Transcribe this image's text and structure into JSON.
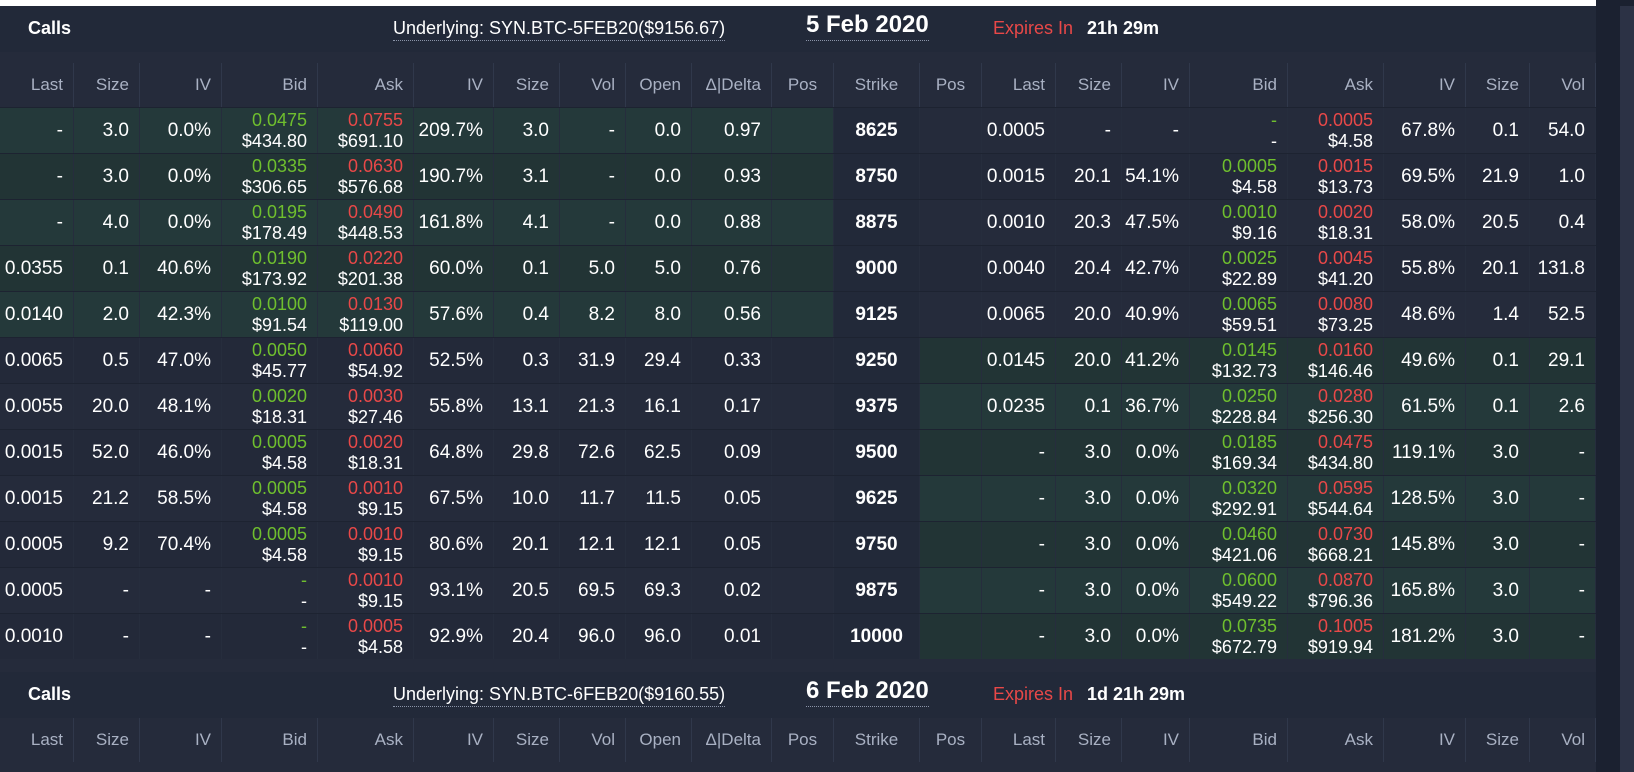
{
  "columns": [
    "Last",
    "Size",
    "IV",
    "Bid",
    "Ask",
    "IV",
    "Size",
    "Vol",
    "Open",
    "Δ|Delta",
    "Pos",
    "Strike",
    "Pos",
    "Last",
    "Size",
    "IV",
    "Bid",
    "Ask",
    "IV",
    "Size",
    "Vol"
  ],
  "sections": [
    {
      "calls_label": "Calls",
      "underlying": "Underlying: SYN.BTC-5FEB20($9156.67)",
      "date": "5 Feb 2020",
      "expires_label": "Expires In",
      "expires_value": "21h 29m"
    },
    {
      "calls_label": "Calls",
      "underlying": "Underlying: SYN.BTC-6FEB20($9160.55)",
      "date": "6 Feb 2020",
      "expires_label": "Expires In",
      "expires_value": "1d 21h 29m"
    }
  ],
  "rows": [
    {
      "call_itm": true,
      "put_itm": false,
      "c_last": "-",
      "c_size": "3.0",
      "c_iv": "0.0%",
      "c_bid_btc": "0.0475",
      "c_bid_usd": "$434.80",
      "c_ask_btc": "0.0755",
      "c_ask_usd": "$691.10",
      "c_miv": "209.7%",
      "c_msize": "3.0",
      "c_vol": "-",
      "c_open": "0.0",
      "c_delta": "0.97",
      "c_pos": "",
      "strike": "8625",
      "p_pos": "",
      "p_last": "0.0005",
      "p_size": "-",
      "p_iv": "-",
      "p_bid_btc": "-",
      "p_bid_usd": "-",
      "p_ask_btc": "0.0005",
      "p_ask_usd": "$4.58",
      "p_miv": "67.8%",
      "p_msize": "0.1",
      "p_vol": "54.0"
    },
    {
      "call_itm": true,
      "put_itm": false,
      "c_last": "-",
      "c_size": "3.0",
      "c_iv": "0.0%",
      "c_bid_btc": "0.0335",
      "c_bid_usd": "$306.65",
      "c_ask_btc": "0.0630",
      "c_ask_usd": "$576.68",
      "c_miv": "190.7%",
      "c_msize": "3.1",
      "c_vol": "-",
      "c_open": "0.0",
      "c_delta": "0.93",
      "c_pos": "",
      "strike": "8750",
      "p_pos": "",
      "p_last": "0.0015",
      "p_size": "20.1",
      "p_iv": "54.1%",
      "p_bid_btc": "0.0005",
      "p_bid_usd": "$4.58",
      "p_ask_btc": "0.0015",
      "p_ask_usd": "$13.73",
      "p_miv": "69.5%",
      "p_msize": "21.9",
      "p_vol": "1.0"
    },
    {
      "call_itm": true,
      "put_itm": false,
      "c_last": "-",
      "c_size": "4.0",
      "c_iv": "0.0%",
      "c_bid_btc": "0.0195",
      "c_bid_usd": "$178.49",
      "c_ask_btc": "0.0490",
      "c_ask_usd": "$448.53",
      "c_miv": "161.8%",
      "c_msize": "4.1",
      "c_vol": "-",
      "c_open": "0.0",
      "c_delta": "0.88",
      "c_pos": "",
      "strike": "8875",
      "p_pos": "",
      "p_last": "0.0010",
      "p_size": "20.3",
      "p_iv": "47.5%",
      "p_bid_btc": "0.0010",
      "p_bid_usd": "$9.16",
      "p_ask_btc": "0.0020",
      "p_ask_usd": "$18.31",
      "p_miv": "58.0%",
      "p_msize": "20.5",
      "p_vol": "0.4"
    },
    {
      "call_itm": true,
      "put_itm": false,
      "c_last": "0.0355",
      "c_size": "0.1",
      "c_iv": "40.6%",
      "c_bid_btc": "0.0190",
      "c_bid_usd": "$173.92",
      "c_ask_btc": "0.0220",
      "c_ask_usd": "$201.38",
      "c_miv": "60.0%",
      "c_msize": "0.1",
      "c_vol": "5.0",
      "c_open": "5.0",
      "c_delta": "0.76",
      "c_pos": "",
      "strike": "9000",
      "p_pos": "",
      "p_last": "0.0040",
      "p_size": "20.4",
      "p_iv": "42.7%",
      "p_bid_btc": "0.0025",
      "p_bid_usd": "$22.89",
      "p_ask_btc": "0.0045",
      "p_ask_usd": "$41.20",
      "p_miv": "55.8%",
      "p_msize": "20.1",
      "p_vol": "131.8"
    },
    {
      "call_itm": true,
      "put_itm": false,
      "c_last": "0.0140",
      "c_size": "2.0",
      "c_iv": "42.3%",
      "c_bid_btc": "0.0100",
      "c_bid_usd": "$91.54",
      "c_ask_btc": "0.0130",
      "c_ask_usd": "$119.00",
      "c_miv": "57.6%",
      "c_msize": "0.4",
      "c_vol": "8.2",
      "c_open": "8.0",
      "c_delta": "0.56",
      "c_pos": "",
      "strike": "9125",
      "p_pos": "",
      "p_last": "0.0065",
      "p_size": "20.0",
      "p_iv": "40.9%",
      "p_bid_btc": "0.0065",
      "p_bid_usd": "$59.51",
      "p_ask_btc": "0.0080",
      "p_ask_usd": "$73.25",
      "p_miv": "48.6%",
      "p_msize": "1.4",
      "p_vol": "52.5"
    },
    {
      "call_itm": false,
      "put_itm": true,
      "c_last": "0.0065",
      "c_size": "0.5",
      "c_iv": "47.0%",
      "c_bid_btc": "0.0050",
      "c_bid_usd": "$45.77",
      "c_ask_btc": "0.0060",
      "c_ask_usd": "$54.92",
      "c_miv": "52.5%",
      "c_msize": "0.3",
      "c_vol": "31.9",
      "c_open": "29.4",
      "c_delta": "0.33",
      "c_pos": "",
      "strike": "9250",
      "p_pos": "",
      "p_last": "0.0145",
      "p_size": "20.0",
      "p_iv": "41.2%",
      "p_bid_btc": "0.0145",
      "p_bid_usd": "$132.73",
      "p_ask_btc": "0.0160",
      "p_ask_usd": "$146.46",
      "p_miv": "49.6%",
      "p_msize": "0.1",
      "p_vol": "29.1"
    },
    {
      "call_itm": false,
      "put_itm": true,
      "c_last": "0.0055",
      "c_size": "20.0",
      "c_iv": "48.1%",
      "c_bid_btc": "0.0020",
      "c_bid_usd": "$18.31",
      "c_ask_btc": "0.0030",
      "c_ask_usd": "$27.46",
      "c_miv": "55.8%",
      "c_msize": "13.1",
      "c_vol": "21.3",
      "c_open": "16.1",
      "c_delta": "0.17",
      "c_pos": "",
      "strike": "9375",
      "p_pos": "",
      "p_last": "0.0235",
      "p_size": "0.1",
      "p_iv": "36.7%",
      "p_bid_btc": "0.0250",
      "p_bid_usd": "$228.84",
      "p_ask_btc": "0.0280",
      "p_ask_usd": "$256.30",
      "p_miv": "61.5%",
      "p_msize": "0.1",
      "p_vol": "2.6"
    },
    {
      "call_itm": false,
      "put_itm": true,
      "c_last": "0.0015",
      "c_size": "52.0",
      "c_iv": "46.0%",
      "c_bid_btc": "0.0005",
      "c_bid_usd": "$4.58",
      "c_ask_btc": "0.0020",
      "c_ask_usd": "$18.31",
      "c_miv": "64.8%",
      "c_msize": "29.8",
      "c_vol": "72.6",
      "c_open": "62.5",
      "c_delta": "0.09",
      "c_pos": "",
      "strike": "9500",
      "p_pos": "",
      "p_last": "-",
      "p_size": "3.0",
      "p_iv": "0.0%",
      "p_bid_btc": "0.0185",
      "p_bid_usd": "$169.34",
      "p_ask_btc": "0.0475",
      "p_ask_usd": "$434.80",
      "p_miv": "119.1%",
      "p_msize": "3.0",
      "p_vol": "-"
    },
    {
      "call_itm": false,
      "put_itm": true,
      "c_last": "0.0015",
      "c_size": "21.2",
      "c_iv": "58.5%",
      "c_bid_btc": "0.0005",
      "c_bid_usd": "$4.58",
      "c_ask_btc": "0.0010",
      "c_ask_usd": "$9.15",
      "c_miv": "67.5%",
      "c_msize": "10.0",
      "c_vol": "11.7",
      "c_open": "11.5",
      "c_delta": "0.05",
      "c_pos": "",
      "strike": "9625",
      "p_pos": "",
      "p_last": "-",
      "p_size": "3.0",
      "p_iv": "0.0%",
      "p_bid_btc": "0.0320",
      "p_bid_usd": "$292.91",
      "p_ask_btc": "0.0595",
      "p_ask_usd": "$544.64",
      "p_miv": "128.5%",
      "p_msize": "3.0",
      "p_vol": "-"
    },
    {
      "call_itm": false,
      "put_itm": true,
      "c_last": "0.0005",
      "c_size": "9.2",
      "c_iv": "70.4%",
      "c_bid_btc": "0.0005",
      "c_bid_usd": "$4.58",
      "c_ask_btc": "0.0010",
      "c_ask_usd": "$9.15",
      "c_miv": "80.6%",
      "c_msize": "20.1",
      "c_vol": "12.1",
      "c_open": "12.1",
      "c_delta": "0.05",
      "c_pos": "",
      "strike": "9750",
      "p_pos": "",
      "p_last": "-",
      "p_size": "3.0",
      "p_iv": "0.0%",
      "p_bid_btc": "0.0460",
      "p_bid_usd": "$421.06",
      "p_ask_btc": "0.0730",
      "p_ask_usd": "$668.21",
      "p_miv": "145.8%",
      "p_msize": "3.0",
      "p_vol": "-"
    },
    {
      "call_itm": false,
      "put_itm": true,
      "c_last": "0.0005",
      "c_size": "-",
      "c_iv": "-",
      "c_bid_btc": "-",
      "c_bid_usd": "-",
      "c_ask_btc": "0.0010",
      "c_ask_usd": "$9.15",
      "c_miv": "93.1%",
      "c_msize": "20.5",
      "c_vol": "69.5",
      "c_open": "69.3",
      "c_delta": "0.02",
      "c_pos": "",
      "strike": "9875",
      "p_pos": "",
      "p_last": "-",
      "p_size": "3.0",
      "p_iv": "0.0%",
      "p_bid_btc": "0.0600",
      "p_bid_usd": "$549.22",
      "p_ask_btc": "0.0870",
      "p_ask_usd": "$796.36",
      "p_miv": "165.8%",
      "p_msize": "3.0",
      "p_vol": "-"
    },
    {
      "call_itm": false,
      "put_itm": true,
      "c_last": "0.0010",
      "c_size": "-",
      "c_iv": "-",
      "c_bid_btc": "-",
      "c_bid_usd": "-",
      "c_ask_btc": "0.0005",
      "c_ask_usd": "$4.58",
      "c_miv": "92.9%",
      "c_msize": "20.4",
      "c_vol": "96.0",
      "c_open": "96.0",
      "c_delta": "0.01",
      "c_pos": "",
      "strike": "10000",
      "p_pos": "",
      "p_last": "-",
      "p_size": "3.0",
      "p_iv": "0.0%",
      "p_bid_btc": "0.0735",
      "p_bid_usd": "$672.79",
      "p_ask_btc": "0.1005",
      "p_ask_usd": "$919.94",
      "p_miv": "181.2%",
      "p_msize": "3.0",
      "p_vol": "-"
    }
  ],
  "colors": {
    "background": "#252b3b",
    "itm_row_odd": "#24393a",
    "itm_row_even": "#223435",
    "otm_row_odd": "#252b3b",
    "otm_row_even": "#232939",
    "bid_green": "#6fbf2e",
    "ask_red": "#e84848",
    "expires_red": "#e84848"
  }
}
